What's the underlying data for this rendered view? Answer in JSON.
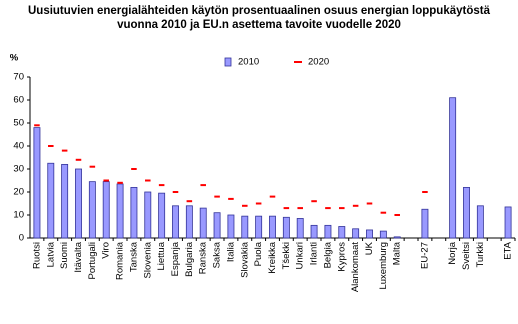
{
  "chart_data": {
    "type": "bar",
    "title": [
      "Uusiutuvien energialähteiden käytön prosentuaalinen osuus energian loppukäytöstä",
      "vuonna 2010 ja EU.n asettema tavoite vuodelle 2020"
    ],
    "y_label": "%",
    "categories": [
      "Ruotsi",
      "Latvia",
      "Suomi",
      "Itävalta",
      "Portugali",
      "Viro",
      "Romania",
      "Tanska",
      "Slovenia",
      "Liettua",
      "Espanja",
      "Bulgaria",
      "Ranska",
      "Saksa",
      "Italia",
      "Slovakia",
      "Puola",
      "Kreikka",
      "Tšekki",
      "Unkari",
      "Irlanti",
      "Belgia",
      "Kypros",
      "Alankomaat",
      "UK",
      "Luxemburg",
      "Malta",
      null,
      "EU-27",
      null,
      "Norja",
      "Sveitsi",
      "Turkki",
      null,
      "ETA"
    ],
    "series": [
      {
        "name": "2010",
        "style": "bar",
        "color": "#9999ff",
        "values": [
          48,
          32.5,
          32,
          30,
          24.5,
          24.5,
          23.5,
          22,
          20,
          19.5,
          14,
          14,
          13,
          11,
          10,
          9.5,
          9.5,
          9.5,
          9,
          8.5,
          5.5,
          5.5,
          5,
          4,
          3.5,
          3,
          0.5,
          null,
          12.5,
          null,
          61,
          22,
          14,
          null,
          13.5
        ]
      },
      {
        "name": "2020",
        "style": "dash",
        "color": "#ff0000",
        "values": [
          49,
          40,
          38,
          34,
          31,
          25,
          24,
          30,
          25,
          23,
          20,
          16,
          23,
          18,
          17,
          14,
          15,
          18,
          13,
          13,
          16,
          13,
          13,
          14,
          15,
          11,
          10,
          null,
          20,
          null,
          null,
          null,
          null,
          null,
          null
        ]
      }
    ],
    "ylim": [
      0,
      70
    ],
    "yticks": [
      0,
      10,
      20,
      30,
      40,
      50,
      60,
      70
    ],
    "grid": false
  }
}
